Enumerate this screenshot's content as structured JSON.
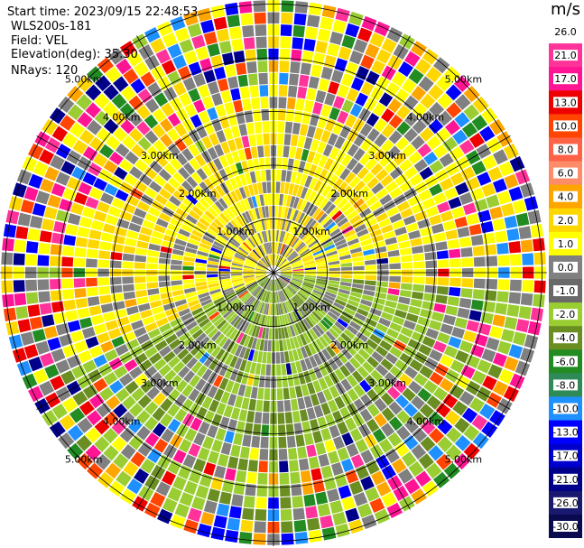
{
  "header": {
    "start_time": "Start time: 2023/09/15 22:48:53",
    "instrument": "WLS200s-181",
    "field": "Field: VEL",
    "elevation": "Elevation(deg): 35.30",
    "nrays": "NRays: 120"
  },
  "chart_data": {
    "type": "heatmap",
    "projection": "polar (PPI)",
    "title": "",
    "field": "VEL",
    "unit": "m/s",
    "nrays": 120,
    "range_rings_km": [
      1.0,
      2.0,
      3.0,
      4.0,
      5.0
    ],
    "range_ring_labels": [
      "1.00km",
      "2.00km",
      "3.00km",
      "4.00km",
      "5.00km"
    ],
    "colorbar": {
      "ticks": [
        "26.0",
        "21.0",
        "17.0",
        "13.0",
        "10.0",
        "8.0",
        "6.0",
        "4.0",
        "2.0",
        "1.0",
        "0.0",
        "-1.0",
        "-2.0",
        "-4.0",
        "-6.0",
        "-8.0",
        "-10.0",
        "-13.0",
        "-17.0",
        "-21.0",
        "-26.0",
        "-30.0"
      ],
      "colors": [
        "#ffffff",
        "#ff3399",
        "#ff1493",
        "#ee0000",
        "#ff4500",
        "#ff6347",
        "#ff8c69",
        "#ffa500",
        "#ffd700",
        "#ffff00",
        "#808080",
        "#696969",
        "#9acd32",
        "#6b8e23",
        "#228b22",
        "#2e8b57",
        "#1e90ff",
        "#0000ff",
        "#0000cd",
        "#00008b",
        "#191970",
        "#0a0a50"
      ]
    },
    "grid": true
  }
}
